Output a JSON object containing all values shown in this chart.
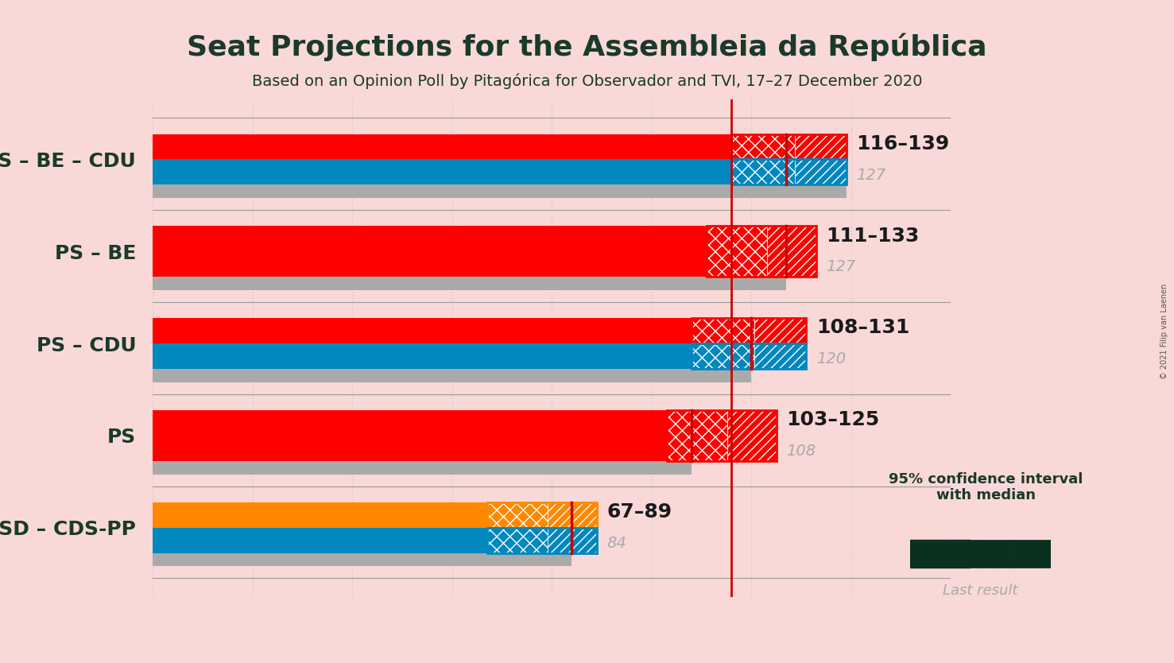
{
  "title": "Seat Projections for the Assembleia da República",
  "subtitle": "Based on an Opinion Poll by Pitagórica for Observador and TVI, 17–27 December 2020",
  "copyright": "© 2021 Filip van Laenen",
  "background_color": "#f9d8d8",
  "majority_line": 116,
  "xlim": [
    0,
    160
  ],
  "xtick_positions": [
    0,
    20,
    40,
    60,
    80,
    100,
    120,
    140,
    160
  ],
  "coalitions": [
    {
      "label": "PS – BE – CDU",
      "underline": false,
      "ci_low": 116,
      "ci_high": 139,
      "median": 127,
      "last_result": 139,
      "bar_colors": [
        "#ff0000",
        "#0087be"
      ],
      "ci_colors": [
        "#ff0000",
        "#0087be"
      ],
      "gray_bar": 139
    },
    {
      "label": "PS – BE",
      "underline": false,
      "ci_low": 111,
      "ci_high": 133,
      "median": 127,
      "last_result": 127,
      "bar_colors": [
        "#ff0000"
      ],
      "ci_colors": [
        "#ff0000"
      ],
      "gray_bar": 127
    },
    {
      "label": "PS – CDU",
      "underline": false,
      "ci_low": 108,
      "ci_high": 131,
      "median": 120,
      "last_result": 120,
      "bar_colors": [
        "#ff0000",
        "#0087be"
      ],
      "ci_colors": [
        "#ff0000",
        "#0087be"
      ],
      "gray_bar": 120
    },
    {
      "label": "PS",
      "underline": true,
      "ci_low": 103,
      "ci_high": 125,
      "median": 108,
      "last_result": 108,
      "bar_colors": [
        "#ff0000"
      ],
      "ci_colors": [
        "#ff0000"
      ],
      "gray_bar": 108
    },
    {
      "label": "PSD – CDS-PP",
      "underline": false,
      "ci_low": 67,
      "ci_high": 89,
      "median": 84,
      "last_result": 84,
      "bar_colors": [
        "#ff8800",
        "#0087be"
      ],
      "ci_colors": [
        "#ff8800",
        "#0087be"
      ],
      "gray_bar": 84
    }
  ],
  "label_color": "#1a3a2a",
  "range_label_color": "#1a1a1a",
  "median_label_color": "#aaaaaa",
  "grid_color": "#cccccc",
  "red_line_color": "#cc0000",
  "legend_text": "95% confidence interval\nwith median",
  "last_result_text": "Last result"
}
